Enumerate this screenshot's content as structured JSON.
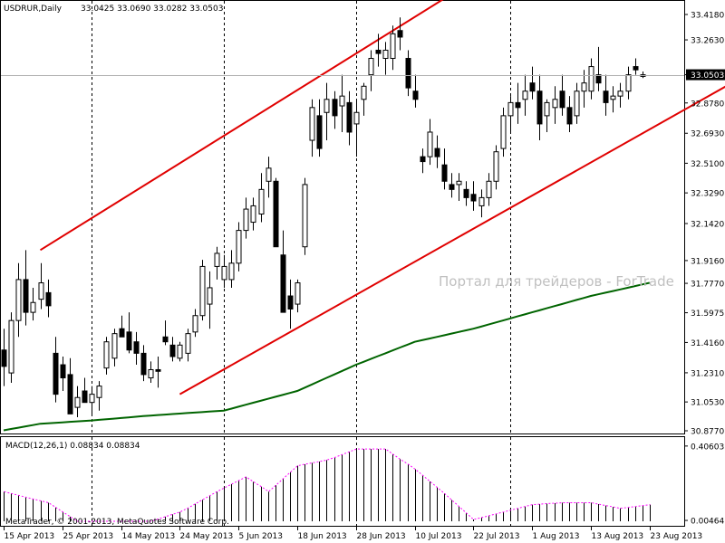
{
  "chart_data": [
    {
      "type": "candlestick",
      "header": {
        "symbol": "USDRUR,Daily",
        "ohlc": "33.0425 33.0690 33.0282 33.0503"
      },
      "watermark": "Портал для трейдеров - ForTrade",
      "current_price": 33.0503,
      "current_price_label": "33.0503",
      "y_ticks": [
        "33.4180",
        "33.2630",
        "33.0503",
        "32.8780",
        "32.6930",
        "32.5100",
        "32.3290",
        "32.1420",
        "31.9160",
        "31.7770",
        "31.5975",
        "31.4160",
        "31.2310",
        "31.0530",
        "30.8770"
      ],
      "x_ticks": [
        {
          "bar": 0,
          "label": "15 Apr 2013"
        },
        {
          "bar": 8,
          "label": "25 Apr 2013"
        },
        {
          "bar": 16,
          "label": "14 May 2013"
        },
        {
          "bar": 24,
          "label": "24 May 2013"
        },
        {
          "bar": 32,
          "label": "5 Jun 2013"
        },
        {
          "bar": 40,
          "label": "18 Jun 2013"
        },
        {
          "bar": 48,
          "label": "28 Jun 2013"
        },
        {
          "bar": 56,
          "label": "10 Jul 2013"
        },
        {
          "bar": 64,
          "label": "22 Jul 2013"
        },
        {
          "bar": 72,
          "label": "1 Aug 2013"
        },
        {
          "bar": 80,
          "label": "13 Aug 2013"
        },
        {
          "bar": 88,
          "label": "23 Aug 2013"
        }
      ],
      "period_separators": [
        12,
        30,
        48,
        69
      ],
      "bullish_color": "#ffffff",
      "bearish_color": "#000000",
      "candles": [
        [
          31.37,
          31.5,
          31.15,
          31.27
        ],
        [
          31.23,
          31.6,
          31.17,
          31.55
        ],
        [
          31.55,
          31.9,
          31.45,
          31.8
        ],
        [
          31.8,
          31.98,
          31.52,
          31.6
        ],
        [
          31.6,
          31.75,
          31.55,
          31.66
        ],
        [
          31.68,
          31.9,
          31.62,
          31.78
        ],
        [
          31.72,
          31.8,
          31.57,
          31.64
        ],
        [
          31.35,
          31.45,
          31.05,
          31.1
        ],
        [
          31.28,
          31.33,
          31.12,
          31.2
        ],
        [
          31.22,
          31.32,
          30.98,
          30.98
        ],
        [
          31.02,
          31.15,
          30.96,
          31.08
        ],
        [
          31.12,
          31.2,
          31.05,
          31.05
        ],
        [
          31.05,
          31.15,
          30.97,
          31.1
        ],
        [
          31.08,
          31.18,
          31.0,
          31.15
        ],
        [
          31.26,
          31.45,
          31.22,
          31.42
        ],
        [
          31.32,
          31.5,
          31.27,
          31.47
        ],
        [
          31.5,
          31.58,
          31.45,
          31.45
        ],
        [
          31.48,
          31.6,
          31.35,
          31.37
        ],
        [
          31.42,
          31.48,
          31.28,
          31.35
        ],
        [
          31.35,
          31.4,
          31.18,
          31.22
        ],
        [
          31.2,
          31.3,
          31.17,
          31.25
        ],
        [
          31.25,
          31.33,
          31.14,
          31.24
        ],
        [
          31.45,
          31.55,
          31.4,
          31.42
        ],
        [
          31.4,
          31.45,
          31.3,
          31.33
        ],
        [
          31.32,
          31.42,
          31.3,
          31.4
        ],
        [
          31.35,
          31.5,
          31.3,
          31.47
        ],
        [
          31.48,
          31.62,
          31.45,
          31.58
        ],
        [
          31.58,
          31.92,
          31.55,
          31.88
        ],
        [
          31.65,
          31.85,
          31.5,
          31.75
        ],
        [
          31.88,
          32.0,
          31.8,
          31.96
        ],
        [
          31.8,
          31.95,
          31.75,
          31.88
        ],
        [
          31.8,
          31.98,
          31.75,
          31.9
        ],
        [
          31.9,
          32.15,
          31.85,
          32.1
        ],
        [
          32.1,
          32.3,
          32.05,
          32.23
        ],
        [
          32.15,
          32.3,
          32.1,
          32.25
        ],
        [
          32.2,
          32.45,
          32.15,
          32.35
        ],
        [
          32.4,
          32.55,
          32.3,
          32.48
        ],
        [
          32.4,
          32.42,
          32.0,
          32.0
        ],
        [
          31.95,
          32.1,
          31.6,
          31.6
        ],
        [
          31.7,
          31.8,
          31.5,
          31.62
        ],
        [
          31.65,
          31.8,
          31.6,
          31.78
        ],
        [
          32.0,
          32.42,
          31.95,
          32.38
        ],
        [
          32.65,
          32.9,
          32.55,
          32.85
        ],
        [
          32.8,
          32.9,
          32.55,
          32.6
        ],
        [
          32.82,
          33.0,
          32.65,
          32.9
        ],
        [
          32.9,
          32.95,
          32.72,
          32.8
        ],
        [
          32.86,
          33.05,
          32.7,
          32.92
        ],
        [
          32.88,
          32.95,
          32.62,
          32.7
        ],
        [
          32.75,
          32.9,
          32.55,
          32.82
        ],
        [
          32.9,
          33.0,
          32.8,
          32.98
        ],
        [
          33.05,
          33.2,
          32.95,
          33.15
        ],
        [
          33.2,
          33.3,
          33.1,
          33.18
        ],
        [
          33.15,
          33.25,
          33.05,
          33.2
        ],
        [
          33.15,
          33.35,
          33.08,
          33.3
        ],
        [
          33.32,
          33.4,
          33.2,
          33.28
        ],
        [
          33.15,
          33.2,
          32.92,
          32.97
        ],
        [
          32.95,
          33.05,
          32.85,
          32.9
        ],
        [
          32.55,
          32.6,
          32.45,
          32.52
        ],
        [
          32.55,
          32.78,
          32.5,
          32.7
        ],
        [
          32.6,
          32.68,
          32.48,
          32.55
        ],
        [
          32.5,
          32.6,
          32.35,
          32.4
        ],
        [
          32.38,
          32.45,
          32.3,
          32.35
        ],
        [
          32.38,
          32.45,
          32.28,
          32.4
        ],
        [
          32.35,
          32.4,
          32.25,
          32.3
        ],
        [
          32.32,
          32.4,
          32.22,
          32.28
        ],
        [
          32.25,
          32.35,
          32.18,
          32.3
        ],
        [
          32.3,
          32.45,
          32.25,
          32.4
        ],
        [
          32.4,
          32.62,
          32.35,
          32.58
        ],
        [
          32.6,
          32.85,
          32.55,
          32.8
        ],
        [
          32.8,
          32.92,
          32.7,
          32.88
        ],
        [
          32.88,
          33.0,
          32.75,
          32.85
        ],
        [
          32.9,
          33.05,
          32.8,
          32.95
        ],
        [
          33.0,
          33.1,
          32.9,
          32.95
        ],
        [
          32.95,
          33.05,
          32.65,
          32.75
        ],
        [
          32.8,
          32.9,
          32.7,
          32.88
        ],
        [
          32.85,
          32.98,
          32.75,
          32.9
        ],
        [
          32.95,
          33.05,
          32.8,
          32.85
        ],
        [
          32.85,
          32.92,
          32.7,
          32.75
        ],
        [
          32.8,
          33.0,
          32.75,
          32.95
        ],
        [
          32.95,
          33.08,
          32.85,
          33.0
        ],
        [
          32.95,
          33.15,
          32.9,
          33.1
        ],
        [
          33.05,
          33.22,
          32.95,
          33.0
        ],
        [
          32.95,
          33.05,
          32.8,
          32.88
        ],
        [
          32.9,
          32.98,
          32.82,
          32.92
        ],
        [
          32.92,
          33.0,
          32.85,
          32.95
        ],
        [
          32.95,
          33.1,
          32.9,
          33.05
        ],
        [
          33.1,
          33.15,
          33.05,
          33.08
        ],
        [
          33.04,
          33.07,
          33.03,
          33.05
        ]
      ],
      "moving_average": {
        "color": "#006400",
        "anchors": [
          [
            0,
            30.88
          ],
          [
            5,
            30.92
          ],
          [
            12,
            30.94
          ],
          [
            20,
            30.97
          ],
          [
            30,
            31.0
          ],
          [
            40,
            31.12
          ],
          [
            48,
            31.28
          ],
          [
            56,
            31.42
          ],
          [
            64,
            31.5
          ],
          [
            72,
            31.6
          ],
          [
            80,
            31.7
          ],
          [
            88,
            31.78
          ]
        ]
      },
      "channel": {
        "color": "#e00000",
        "upper": [
          [
            5,
            31.98
          ],
          [
            62,
            33.57
          ]
        ],
        "lower": [
          [
            24,
            31.1
          ],
          [
            100,
            33.02
          ]
        ]
      }
    },
    {
      "type": "histogram",
      "title": "MACD(12,26,1) 0.08834 0.08834",
      "y_ticks": [
        "0.40603",
        "0.00464"
      ],
      "ylim": [
        0,
        0.42
      ],
      "bar_color": "#000000",
      "signal_color": "#ff00ff",
      "anchors": [
        [
          0,
          0.16
        ],
        [
          6,
          0.1
        ],
        [
          10,
          0.0
        ],
        [
          15,
          0.0
        ],
        [
          20,
          0.0
        ],
        [
          24,
          0.05
        ],
        [
          29,
          0.16
        ],
        [
          33,
          0.24
        ],
        [
          36,
          0.16
        ],
        [
          40,
          0.3
        ],
        [
          44,
          0.33
        ],
        [
          48,
          0.39
        ],
        [
          52,
          0.39
        ],
        [
          56,
          0.28
        ],
        [
          60,
          0.15
        ],
        [
          64,
          0.01
        ],
        [
          68,
          0.05
        ],
        [
          72,
          0.09
        ],
        [
          76,
          0.1
        ],
        [
          80,
          0.1
        ],
        [
          84,
          0.07
        ],
        [
          88,
          0.09
        ]
      ],
      "footer": "MetaTrader, © 2001-2013, MetaQuotes Software Corp."
    }
  ]
}
